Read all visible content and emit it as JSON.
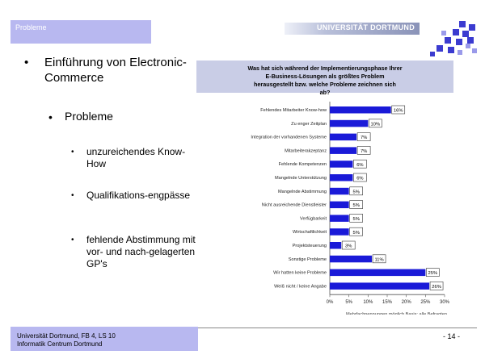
{
  "header": {
    "section_label": "Probleme",
    "university": "UNIVERSITÄT DORTMUND"
  },
  "content": {
    "bullet1": "Einführung von Electronic-Commerce",
    "bullet2": "Probleme",
    "sub_bullets": [
      "unzureichendes Know-How",
      "Qualifikations-engpässe",
      "fehlende Abstimmung mit vor- und nach-gelagerten GP's"
    ],
    "bullet_char": "•"
  },
  "footer": {
    "line1": "Universität Dortmund, FB 4, LS 10",
    "line2": "Informatik Centrum Dortmund",
    "page": "- 14 -"
  },
  "chart_data": {
    "type": "bar",
    "orientation": "horizontal",
    "title": "Was hat sich während der Implementierungsphase Ihrer E-Business-Lösungen als größtes Problem herausgestellt bzw. welche Probleme zeichnen sich ab?",
    "categories": [
      "Fehlendes Mitarbeiter Know-how",
      "Zu enger Zeitplan",
      "Integration der vorhandenen Systeme",
      "Mitarbeiterakzeptanz",
      "Fehlende Kompetenzen",
      "Mangelnde Unterstützung",
      "Mangelnde Abstimmung",
      "Nicht ausreichende Dienstleister",
      "Verfügbarkeit",
      "Wirtschaftlichkeit",
      "Projektsteuerung",
      "Sonstige Probleme",
      "Wir hatten keine Probleme",
      "Weiß nicht / keine Angabe"
    ],
    "values": [
      16,
      10,
      7,
      7,
      6,
      6,
      5,
      5,
      5,
      5,
      3,
      11,
      25,
      26
    ],
    "value_labels": [
      "16%",
      "10%",
      "7%",
      "7%",
      "6%",
      "6%",
      "5%",
      "5%",
      "5%",
      "5%",
      "3%",
      "11%",
      "25%",
      "26%"
    ],
    "xticks": [
      "0%",
      "5%",
      "10%",
      "15%",
      "20%",
      "25%",
      "30%"
    ],
    "xlim": [
      0,
      30
    ],
    "bar_color": "#1a1ad8",
    "header_color": "#c9cde6",
    "source": "Quelle: Tech Consult",
    "note": "Mehrfachnennungen möglich Basis: alle Befragten"
  }
}
